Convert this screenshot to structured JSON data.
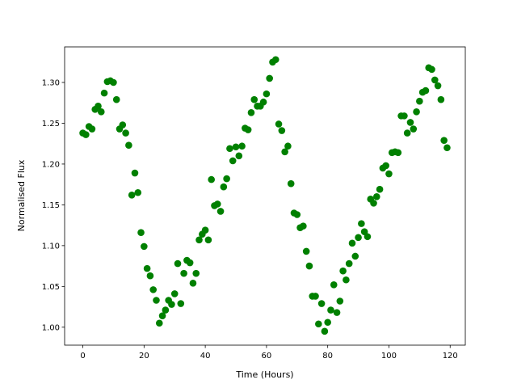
{
  "chart_data": {
    "type": "scatter",
    "x_label": "Time (Hours)",
    "y_label": "Normalised Flux",
    "color": "#008000",
    "x": [
      0,
      1,
      2,
      3,
      4,
      5,
      6,
      7,
      8,
      9,
      10,
      11,
      12,
      13,
      14,
      15,
      16,
      17,
      18,
      19,
      20,
      21,
      22,
      23,
      24,
      25,
      26,
      27,
      28,
      29,
      30,
      31,
      32,
      33,
      34,
      35,
      36,
      37,
      38,
      39,
      40,
      41,
      42,
      43,
      44,
      45,
      46,
      47,
      48,
      49,
      50,
      51,
      52,
      53,
      54,
      55,
      56,
      57,
      58,
      59,
      60,
      61,
      62,
      63,
      64,
      65,
      66,
      67,
      68,
      69,
      70,
      71,
      72,
      73,
      74,
      75,
      76,
      77,
      78,
      79,
      80,
      81,
      82,
      83,
      84,
      85,
      86,
      87,
      88,
      89,
      90,
      91,
      92,
      93,
      94,
      95,
      96,
      97,
      98,
      99,
      100,
      101,
      102,
      103,
      104,
      105,
      106,
      107,
      108,
      109,
      110,
      111,
      112,
      113,
      114,
      115,
      116,
      117,
      118,
      119
    ],
    "values": [
      1.238,
      1.236,
      1.246,
      1.243,
      1.267,
      1.271,
      1.264,
      1.287,
      1.301,
      1.302,
      1.3,
      1.279,
      1.243,
      1.248,
      1.238,
      1.223,
      1.162,
      1.189,
      1.165,
      1.116,
      1.099,
      1.072,
      1.063,
      1.046,
      1.033,
      1.005,
      1.014,
      1.021,
      1.033,
      1.028,
      1.041,
      1.078,
      1.029,
      1.066,
      1.082,
      1.079,
      1.054,
      1.066,
      1.107,
      1.114,
      1.119,
      1.107,
      1.181,
      1.149,
      1.151,
      1.142,
      1.172,
      1.182,
      1.219,
      1.204,
      1.221,
      1.21,
      1.222,
      1.244,
      1.242,
      1.263,
      1.279,
      1.271,
      1.271,
      1.276,
      1.286,
      1.305,
      1.325,
      1.328,
      1.249,
      1.241,
      1.215,
      1.222,
      1.176,
      1.14,
      1.138,
      1.122,
      1.124,
      1.093,
      1.075,
      1.038,
      1.038,
      1.004,
      1.029,
      0.995,
      1.006,
      1.021,
      1.052,
      1.018,
      1.032,
      1.069,
      1.058,
      1.078,
      1.103,
      1.087,
      1.11,
      1.127,
      1.117,
      1.111,
      1.157,
      1.152,
      1.16,
      1.169,
      1.195,
      1.198,
      1.188,
      1.214,
      1.215,
      1.214,
      1.259,
      1.259,
      1.238,
      1.251,
      1.243,
      1.264,
      1.277,
      1.288,
      1.29,
      1.318,
      1.316,
      1.303,
      1.296,
      1.279,
      1.229,
      1.22
    ],
    "xlim": [
      -5.95,
      124.95
    ],
    "xticks": [
      0,
      20,
      40,
      60,
      80,
      100,
      120
    ],
    "ylim": [
      0.978,
      1.3436
    ],
    "yticks": [
      {
        "value": 1,
        "label": "1.00"
      },
      {
        "value": 1.05,
        "label": "1.05"
      },
      {
        "value": 1.1,
        "label": "1.10"
      },
      {
        "value": 1.15,
        "label": "1.15"
      },
      {
        "value": 1.2,
        "label": "1.20"
      },
      {
        "value": 1.25,
        "label": "1.25"
      },
      {
        "value": 1.3,
        "label": "1.30"
      }
    ]
  }
}
